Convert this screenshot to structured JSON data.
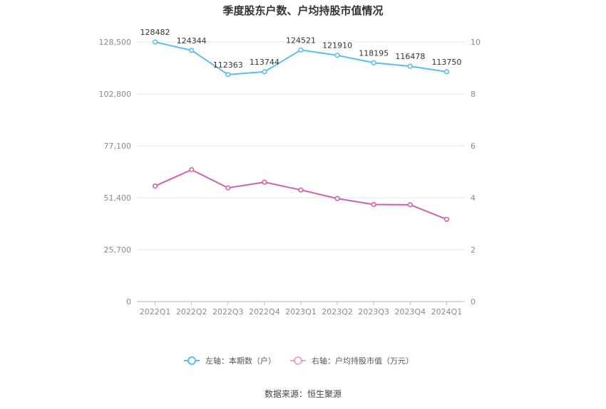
{
  "chart_data": {
    "type": "line",
    "title": "季度股东户数、户均持股市值情况",
    "categories": [
      "2022Q1",
      "2022Q2",
      "2022Q3",
      "2022Q4",
      "2023Q1",
      "2023Q2",
      "2023Q3",
      "2023Q4",
      "2024Q1"
    ],
    "left_axis": {
      "ticks": [
        "0",
        "25,700",
        "51,400",
        "77,100",
        "102,800",
        "128,500"
      ],
      "ylim": [
        0,
        128500
      ]
    },
    "right_axis": {
      "ticks": [
        "0",
        "2",
        "4",
        "6",
        "8",
        "10"
      ],
      "ylim": [
        0,
        10
      ]
    },
    "series": [
      {
        "name": "左轴：本期数（户）",
        "axis": "left",
        "color": "#5bbdf0",
        "values": [
          128482,
          124344,
          112363,
          113744,
          124521,
          121910,
          118195,
          116478,
          113750
        ],
        "labels": [
          "128482",
          "124344",
          "112363",
          "113744",
          "124521",
          "121910",
          "118195",
          "116478",
          "113750"
        ]
      },
      {
        "name": "右轴：户均持股市值（万元）",
        "axis": "right",
        "color": "#d05fae",
        "values": [
          4.45,
          5.08,
          4.38,
          4.6,
          4.3,
          3.97,
          3.74,
          3.73,
          3.17
        ]
      }
    ],
    "legend_position": "bottom-center",
    "grid": true
  },
  "footer": {
    "source": "数据来源：恒生聚源"
  }
}
